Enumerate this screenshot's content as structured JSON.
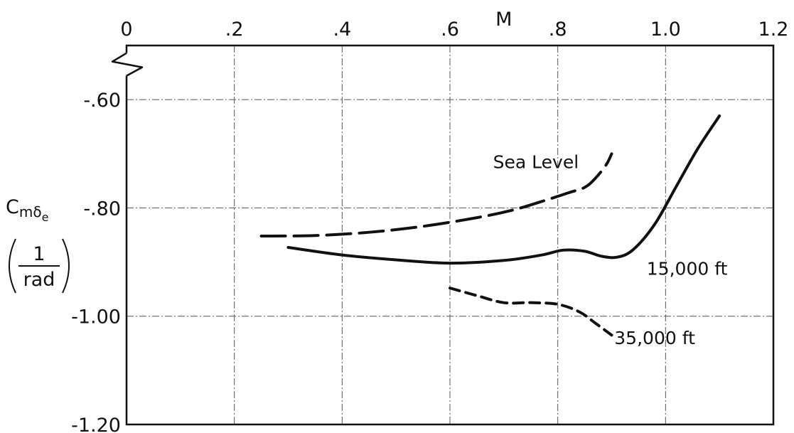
{
  "chart_data": {
    "type": "line",
    "xlabel": "M",
    "ylabel": "Cmδe",
    "ylabel_units_numerator": "1",
    "ylabel_units_denominator": "rad",
    "xlim": [
      0,
      1.2
    ],
    "ylim": [
      -1.2,
      -0.5
    ],
    "x_ticks": [
      0,
      0.2,
      0.4,
      0.6,
      0.8,
      1.0,
      1.2
    ],
    "x_tick_labels": [
      "0",
      ".2",
      ".4",
      ".6",
      ".8",
      "1.0",
      "1.2"
    ],
    "y_ticks": [
      -0.6,
      -0.8,
      -1.0,
      -1.2
    ],
    "y_tick_labels": [
      "-.60",
      "-.80",
      "-1.00",
      "-1.20"
    ],
    "grid": true,
    "axis_break_on_y": true,
    "series": [
      {
        "name": "Sea Level",
        "line_style": "long-dash",
        "x": [
          0.25,
          0.35,
          0.45,
          0.55,
          0.65,
          0.72,
          0.78,
          0.82,
          0.85,
          0.87,
          0.89,
          0.9
        ],
        "y": [
          -0.852,
          -0.851,
          -0.845,
          -0.834,
          -0.818,
          -0.803,
          -0.785,
          -0.772,
          -0.762,
          -0.745,
          -0.72,
          -0.7
        ]
      },
      {
        "name": "15,000 ft",
        "line_style": "solid",
        "x": [
          0.3,
          0.4,
          0.5,
          0.6,
          0.7,
          0.77,
          0.81,
          0.85,
          0.88,
          0.91,
          0.94,
          0.98,
          1.02,
          1.06,
          1.1
        ],
        "y": [
          -0.873,
          -0.887,
          -0.896,
          -0.902,
          -0.897,
          -0.887,
          -0.878,
          -0.88,
          -0.889,
          -0.891,
          -0.877,
          -0.83,
          -0.76,
          -0.69,
          -0.63
        ]
      },
      {
        "name": "35,000 ft",
        "line_style": "short-dash",
        "x": [
          0.6,
          0.65,
          0.7,
          0.75,
          0.8,
          0.84,
          0.87,
          0.9
        ],
        "y": [
          -0.948,
          -0.962,
          -0.975,
          -0.975,
          -0.978,
          -0.992,
          -1.013,
          -1.035
        ]
      }
    ],
    "annotations": [
      {
        "text": "Sea Level",
        "x": 0.68,
        "y": -0.715
      },
      {
        "text": "15,000 ft",
        "x": 0.965,
        "y": -0.912
      },
      {
        "text": "35,000 ft",
        "x": 0.905,
        "y": -1.04
      }
    ]
  }
}
